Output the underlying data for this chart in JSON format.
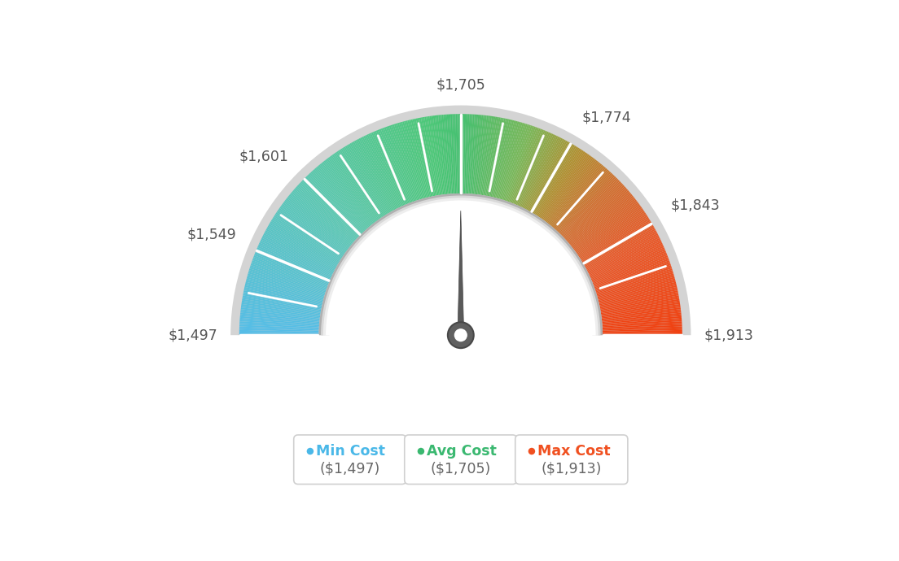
{
  "min_val": 1497,
  "avg_val": 1705,
  "max_val": 1913,
  "label_vals": [
    1497,
    1549,
    1601,
    1705,
    1774,
    1843,
    1913
  ],
  "tick_vals": [
    1497,
    1523,
    1549,
    1575,
    1601,
    1627,
    1653,
    1679,
    1705,
    1731,
    1757,
    1774,
    1800,
    1843,
    1870,
    1913
  ],
  "min_color": "#4ab8e8",
  "avg_color": "#3ab870",
  "max_color": "#f05020",
  "background_color": "#ffffff",
  "legend_items": [
    {
      "label": "Min Cost",
      "value": "($1,497)",
      "color": "#4ab8e8"
    },
    {
      "label": "Avg Cost",
      "value": "($1,705)",
      "color": "#3ab870"
    },
    {
      "label": "Max Cost",
      "value": "($1,913)",
      "color": "#f05020"
    }
  ],
  "gauge_colors": [
    [
      0.0,
      "#55bde8"
    ],
    [
      0.25,
      "#5ac8b0"
    ],
    [
      0.45,
      "#4cc878"
    ],
    [
      0.5,
      "#45c070"
    ],
    [
      0.6,
      "#78b858"
    ],
    [
      0.68,
      "#b09030"
    ],
    [
      0.75,
      "#d07030"
    ],
    [
      0.85,
      "#e85828"
    ],
    [
      1.0,
      "#f04010"
    ]
  ]
}
